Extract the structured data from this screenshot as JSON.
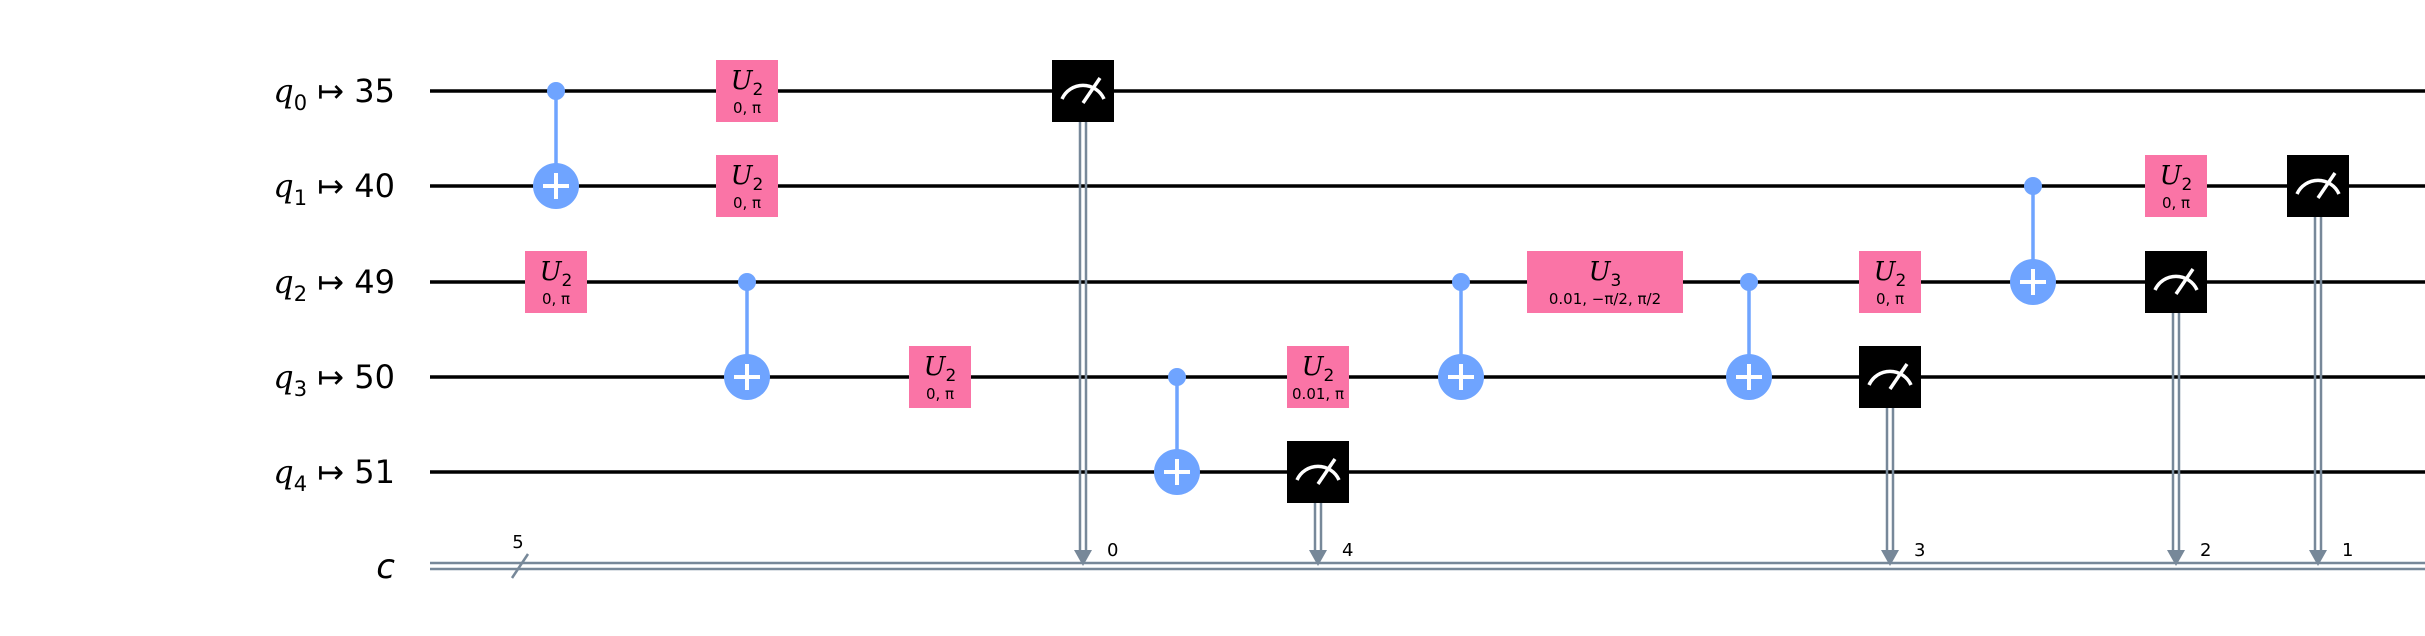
{
  "colors": {
    "wire": "#000000",
    "classical_wire": "#778899",
    "u_gate": "#FA74A6",
    "control": "#6FA4FF",
    "measure": "#000000",
    "meter": "#ffffff"
  },
  "qubits": [
    {
      "label": "q",
      "index": "0",
      "maps_to": "35"
    },
    {
      "label": "q",
      "index": "1",
      "maps_to": "40"
    },
    {
      "label": "q",
      "index": "2",
      "maps_to": "49"
    },
    {
      "label": "q",
      "index": "3",
      "maps_to": "50"
    },
    {
      "label": "q",
      "index": "4",
      "maps_to": "51"
    }
  ],
  "classical": {
    "label": "c",
    "size": "5"
  },
  "gates": [
    {
      "type": "cx",
      "column": 1,
      "control": 0,
      "target": 1
    },
    {
      "type": "u",
      "column": 1,
      "qubit": 2,
      "name": "U",
      "sub": "2",
      "params": "0, π"
    },
    {
      "type": "u",
      "column": 2,
      "qubit": 0,
      "name": "U",
      "sub": "2",
      "params": "0, π"
    },
    {
      "type": "u",
      "column": 2,
      "qubit": 1,
      "name": "U",
      "sub": "2",
      "params": "0, π"
    },
    {
      "type": "cx",
      "column": 2,
      "control": 2,
      "target": 3
    },
    {
      "type": "u",
      "column": 3,
      "qubit": 3,
      "name": "U",
      "sub": "2",
      "params": "0, π"
    },
    {
      "type": "measure",
      "column": 4,
      "qubit": 0,
      "clbit": "0"
    },
    {
      "type": "cx",
      "column": 5,
      "control": 3,
      "target": 4
    },
    {
      "type": "u",
      "column": 6,
      "qubit": 3,
      "name": "U",
      "sub": "2",
      "params": "0.01, π"
    },
    {
      "type": "measure",
      "column": 6,
      "qubit": 4,
      "clbit": "4"
    },
    {
      "type": "cx",
      "column": 7,
      "control": 2,
      "target": 3
    },
    {
      "type": "u",
      "column": 8,
      "qubit": 2,
      "name": "U",
      "sub": "3",
      "params": "0.01, −π/2, π/2",
      "wide": true
    },
    {
      "type": "cx",
      "column": 9,
      "control": 2,
      "target": 3
    },
    {
      "type": "u",
      "column": 10,
      "qubit": 2,
      "name": "U",
      "sub": "2",
      "params": "0, π"
    },
    {
      "type": "measure",
      "column": 10,
      "qubit": 3,
      "clbit": "3"
    },
    {
      "type": "cx",
      "column": 11,
      "control": 1,
      "target": 2
    },
    {
      "type": "u",
      "column": 12,
      "qubit": 1,
      "name": "U",
      "sub": "2",
      "params": "0, π"
    },
    {
      "type": "measure",
      "column": 12,
      "qubit": 2,
      "clbit": "2"
    },
    {
      "type": "measure",
      "column": 13,
      "qubit": 1,
      "clbit": "1"
    }
  ]
}
